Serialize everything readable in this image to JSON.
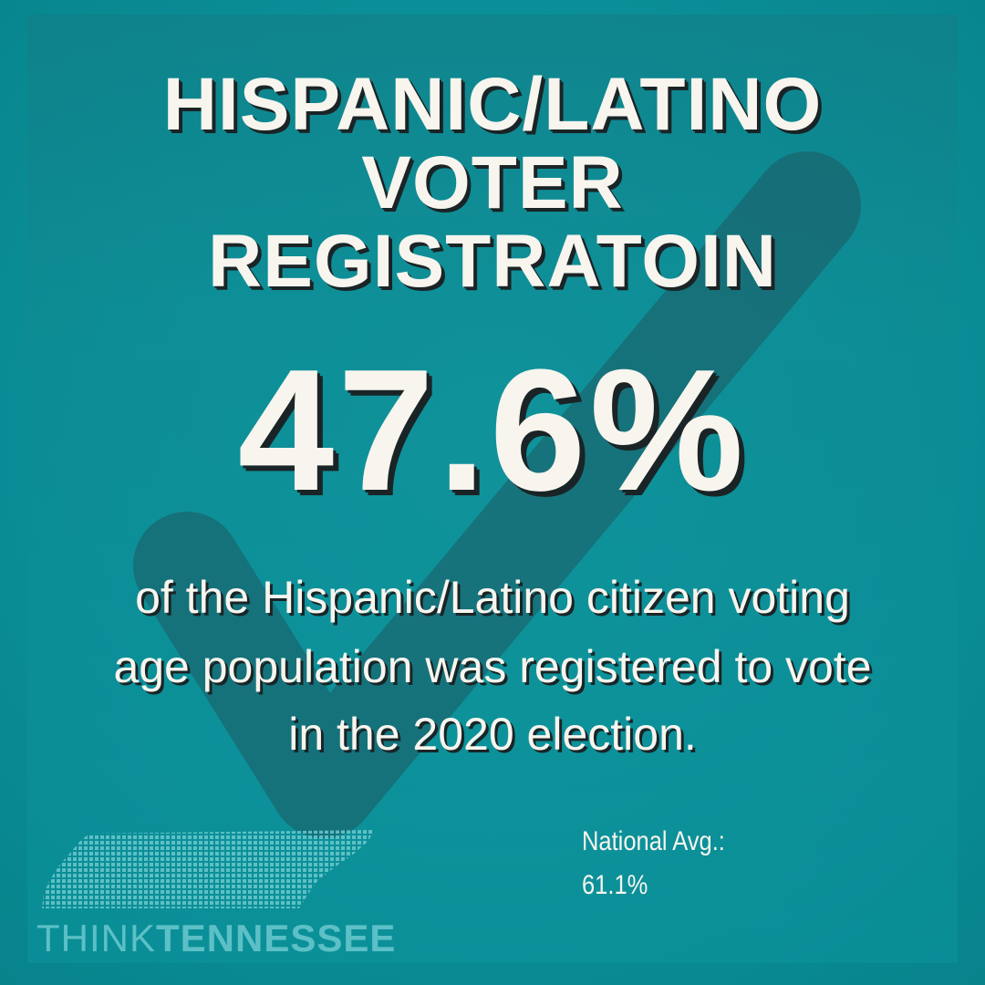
{
  "title": {
    "line1": "HISPANIC/LATINO",
    "line2": "VOTER",
    "line3": "REGISTRATOIN"
  },
  "stat": {
    "value": "47.6%"
  },
  "description": {
    "line1": "of the Hispanic/Latino citizen voting",
    "line2": "age population was registered to vote",
    "line3": "in the 2020 election."
  },
  "national": {
    "label": "National Avg.:",
    "value": "61.1%"
  },
  "logo": {
    "word1": "THINK",
    "word2": "TENNESSEE"
  },
  "colors": {
    "background": "#0a8f98",
    "text": "#f7f5ee",
    "shadow": "#1a2426",
    "checkmark": "#1d5a63",
    "logo": "#5cc0c6"
  },
  "icons": {
    "background_mark": "checkmark-icon",
    "logo_graphic": "tennessee-map-icon"
  }
}
